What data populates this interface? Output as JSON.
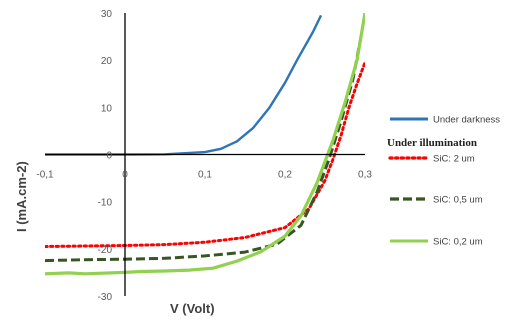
{
  "chart_data": {
    "type": "line",
    "xlabel": "V (Volt)",
    "ylabel": "I (mA.cm-2)",
    "xlim": [
      -0.1,
      0.3
    ],
    "ylim": [
      -30,
      30
    ],
    "x_ticks": [
      "-0,1",
      "0",
      "0,1",
      "0,2",
      "0,3"
    ],
    "y_ticks": [
      "30",
      "20",
      "10",
      "0",
      "-10",
      "-20",
      "-30"
    ],
    "grid": false,
    "legend_position": "right",
    "legend_heading": "Under illumination",
    "series": [
      {
        "name": "Under darkness",
        "color": "#2e75b6",
        "dash": "solid",
        "points": [
          [
            -0.1,
            0
          ],
          [
            0,
            0
          ],
          [
            0.05,
            0.05
          ],
          [
            0.1,
            0.5
          ],
          [
            0.12,
            1.2
          ],
          [
            0.14,
            2.8
          ],
          [
            0.16,
            5.6
          ],
          [
            0.18,
            9.8
          ],
          [
            0.2,
            15.2
          ],
          [
            0.215,
            20
          ],
          [
            0.235,
            26
          ],
          [
            0.245,
            29.5
          ]
        ]
      },
      {
        "name": "SiC: 2 um",
        "color": "#ff0000",
        "dash": "dotted",
        "points": [
          [
            -0.1,
            -19.5
          ],
          [
            -0.05,
            -19.4
          ],
          [
            0,
            -19.3
          ],
          [
            0.05,
            -19.1
          ],
          [
            0.1,
            -18.6
          ],
          [
            0.15,
            -17.6
          ],
          [
            0.2,
            -15.5
          ],
          [
            0.23,
            -11.5
          ],
          [
            0.25,
            -5.5
          ],
          [
            0.26,
            -1
          ],
          [
            0.27,
            4
          ],
          [
            0.28,
            10
          ],
          [
            0.29,
            15
          ],
          [
            0.3,
            19.5
          ]
        ]
      },
      {
        "name": "SiC: 0,5 um",
        "color": "#375623",
        "dash": "dashed",
        "points": [
          [
            -0.1,
            -22.5
          ],
          [
            -0.05,
            -22.3
          ],
          [
            0,
            -22.2
          ],
          [
            0.05,
            -22
          ],
          [
            0.1,
            -21.5
          ],
          [
            0.15,
            -20.7
          ],
          [
            0.19,
            -19
          ],
          [
            0.22,
            -15
          ],
          [
            0.24,
            -8
          ],
          [
            0.255,
            -1
          ],
          [
            0.27,
            7
          ],
          [
            0.285,
            16
          ],
          [
            0.295,
            25
          ]
        ]
      },
      {
        "name": "SiC: 0,2 um",
        "color": "#92d050",
        "dash": "solid",
        "points": [
          [
            -0.1,
            -25.3
          ],
          [
            -0.07,
            -25.1
          ],
          [
            -0.05,
            -25.3
          ],
          [
            0,
            -25
          ],
          [
            0.02,
            -24.8
          ],
          [
            0.05,
            -24.7
          ],
          [
            0.08,
            -24.5
          ],
          [
            0.11,
            -24.1
          ],
          [
            0.14,
            -22.6
          ],
          [
            0.17,
            -20.6
          ],
          [
            0.2,
            -17.3
          ],
          [
            0.22,
            -13
          ],
          [
            0.24,
            -6
          ],
          [
            0.25,
            -1.5
          ],
          [
            0.26,
            3
          ],
          [
            0.275,
            11
          ],
          [
            0.29,
            20
          ],
          [
            0.3,
            30
          ]
        ]
      }
    ]
  }
}
